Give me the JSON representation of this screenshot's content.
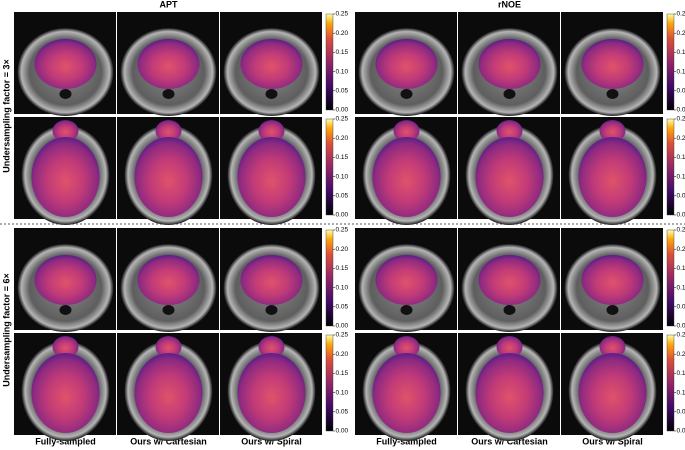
{
  "groups": [
    "APT",
    "rNOE"
  ],
  "columns": [
    "Fully-sampled",
    "Ours w/ Cartesian",
    "Ours w/ Spiral"
  ],
  "rows": [
    "Undersampling factor = 3×",
    "Undersampling factor = 6×"
  ],
  "colorbar": {
    "ticks": [
      "0.25",
      "0.20",
      "0.15",
      "0.10",
      "0.05",
      "0.00"
    ]
  }
}
